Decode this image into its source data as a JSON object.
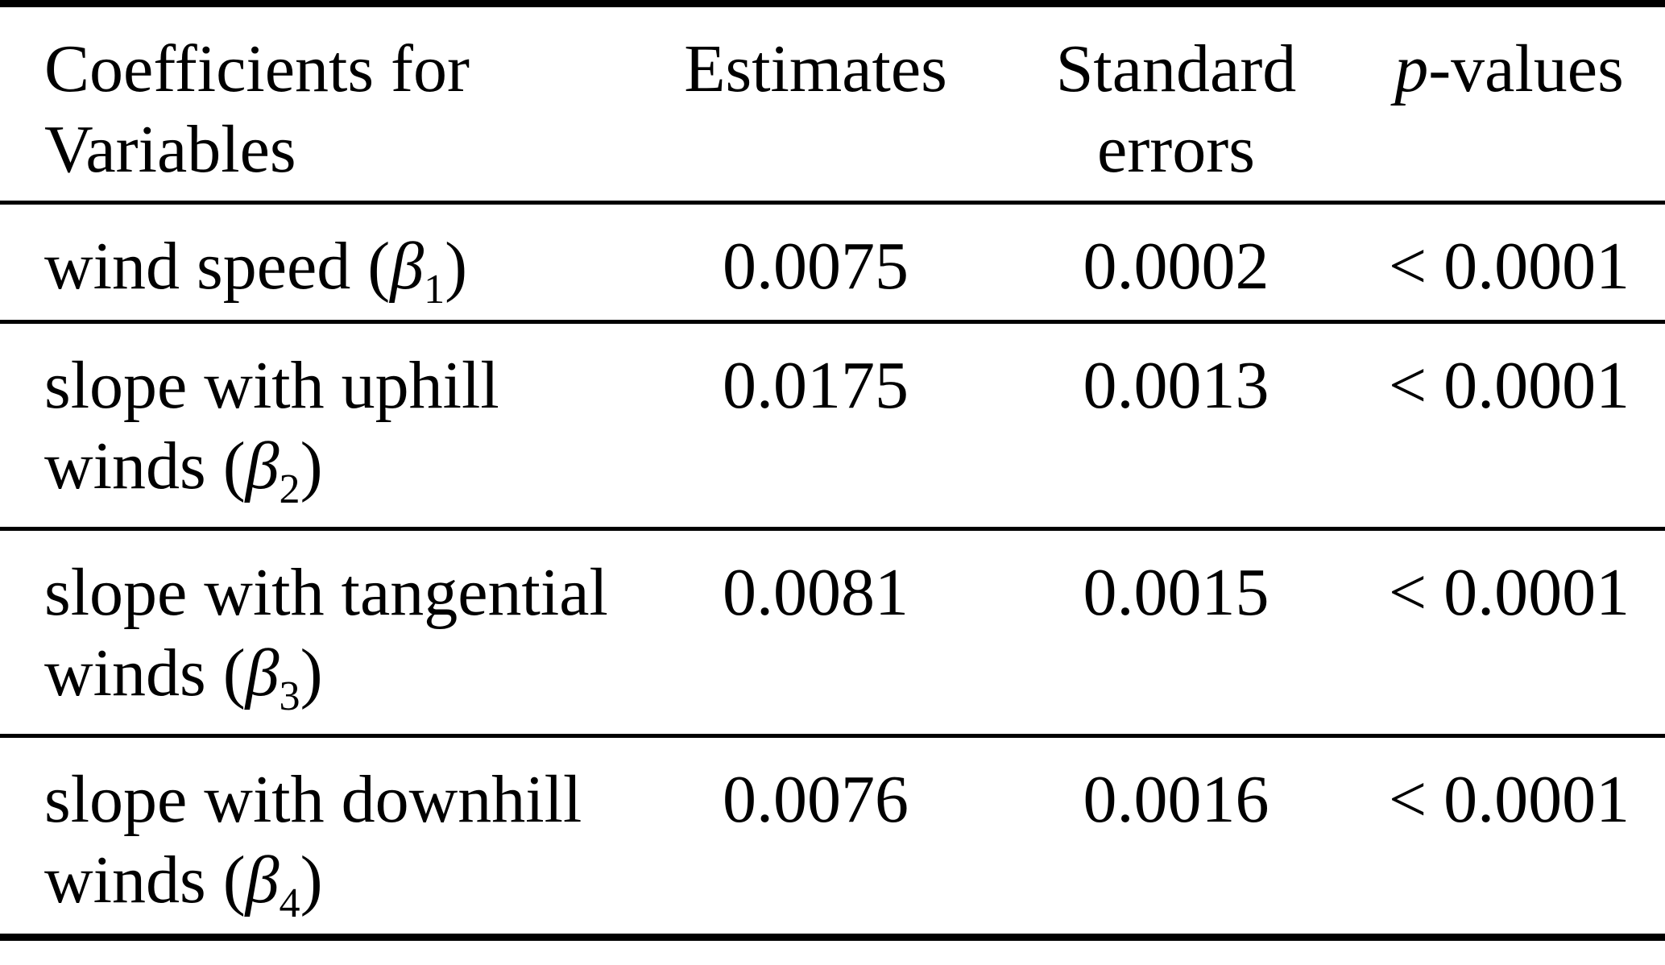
{
  "table": {
    "colors": {
      "text": "#000000",
      "background": "#ffffff",
      "rules": "#000000"
    },
    "headers": {
      "variables": "Coefficients for Variables",
      "estimates": "Estimates",
      "std_errors": "Standard errors",
      "p_values": {
        "symbol": "p",
        "rest": "-values"
      }
    },
    "rows": [
      {
        "variable": {
          "text": "wind speed (",
          "symbol": "β",
          "sub": "1",
          "close": ")"
        },
        "estimate": "0.0075",
        "std_error": "0.0002",
        "p_value": "< 0.0001"
      },
      {
        "variable": {
          "text": "slope with uphill winds (",
          "symbol": "β",
          "sub": "2",
          "close": ")"
        },
        "estimate": "0.0175",
        "std_error": "0.0013",
        "p_value": "< 0.0001"
      },
      {
        "variable": {
          "text": "slope with tangential winds (",
          "symbol": "β",
          "sub": "3",
          "close": ")"
        },
        "estimate": "0.0081",
        "std_error": "0.0015",
        "p_value": "< 0.0001"
      },
      {
        "variable": {
          "text": "slope with downhill winds (",
          "symbol": "β",
          "sub": "4",
          "close": ")"
        },
        "estimate": "0.0076",
        "std_error": "0.0016",
        "p_value": "< 0.0001"
      }
    ]
  }
}
